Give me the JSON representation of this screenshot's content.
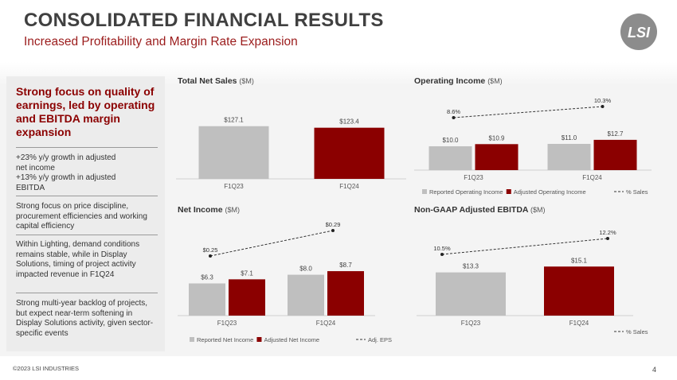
{
  "title": "CONSOLIDATED FINANCIAL RESULTS",
  "subtitle": "Increased Profitability and Margin Rate Expansion",
  "logo": "LSI",
  "left_panel": {
    "heading": "Strong focus on quality of earnings, led by operating and EBITDA margin expansion",
    "bullets": [
      "+23% y/y growth in adjusted\n   net income\n+13% y/y growth in adjusted\n   EBITDA",
      "Strong focus on price discipline, procurement efficiencies and working capital efficiency",
      "Within Lighting, demand conditions remains stable, while in Display Solutions, timing of project activity impacted revenue in F1Q24",
      "Strong multi-year backlog of projects, but expect near-term softening in Display Solutions activity, given sector-specific events"
    ]
  },
  "colors": {
    "gray": "#bfbfbf",
    "red": "#8b0000",
    "accent": "#9b1c1c"
  },
  "chart_data": [
    {
      "id": "net-sales",
      "type": "bar",
      "title": "Total Net Sales",
      "unit": "($M)",
      "categories": [
        "F1Q23",
        "F1Q24"
      ],
      "values": [
        127.1,
        123.4
      ],
      "labels": [
        "$127.1",
        "$123.4"
      ],
      "colors": [
        "#bfbfbf",
        "#8b0000"
      ],
      "ylim": [
        0,
        140
      ]
    },
    {
      "id": "operating-income",
      "type": "bar",
      "title": "Operating Income",
      "unit": "($M)",
      "categories": [
        "F1Q23",
        "F1Q24"
      ],
      "series": [
        {
          "name": "Reported Operating Income",
          "values": [
            10.0,
            11.0
          ],
          "labels": [
            "$10.0",
            "$11.0"
          ],
          "color": "#bfbfbf"
        },
        {
          "name": "Adjusted Operating Income",
          "values": [
            10.9,
            12.7
          ],
          "labels": [
            "$10.9",
            "$12.7"
          ],
          "color": "#8b0000"
        }
      ],
      "line": {
        "name": "% Sales",
        "values": [
          8.6,
          10.3
        ],
        "labels": [
          "8.6%",
          "10.3%"
        ]
      },
      "ylim": [
        0,
        20
      ]
    },
    {
      "id": "net-income",
      "type": "bar",
      "title": "Net Income",
      "unit": "($M)",
      "categories": [
        "F1Q23",
        "F1Q24"
      ],
      "series": [
        {
          "name": "Reported Net Income",
          "values": [
            6.3,
            8.0
          ],
          "labels": [
            "$6.3",
            "$8.0"
          ],
          "color": "#bfbfbf"
        },
        {
          "name": "Adjusted Net Income",
          "values": [
            7.1,
            8.7
          ],
          "labels": [
            "$7.1",
            "$8.7"
          ],
          "color": "#8b0000"
        }
      ],
      "line": {
        "name": "Adj. EPS",
        "values": [
          0.25,
          0.29
        ],
        "labels": [
          "$0.25",
          "$0.29"
        ]
      },
      "ylim": [
        0,
        14
      ]
    },
    {
      "id": "ebitda",
      "type": "bar",
      "title": "Non-GAAP Adjusted EBITDA",
      "unit": "($M)",
      "categories": [
        "F1Q23",
        "F1Q24"
      ],
      "values": [
        13.3,
        15.1
      ],
      "labels": [
        "$13.3",
        "$15.1"
      ],
      "colors": [
        "#bfbfbf",
        "#8b0000"
      ],
      "line": {
        "name": "% Sales",
        "values": [
          10.5,
          12.2
        ],
        "labels": [
          "10.5%",
          "12.2%"
        ]
      },
      "ylim": [
        0,
        23
      ]
    }
  ],
  "footer": "©2023 LSI INDUSTRIES",
  "page_number": "4"
}
